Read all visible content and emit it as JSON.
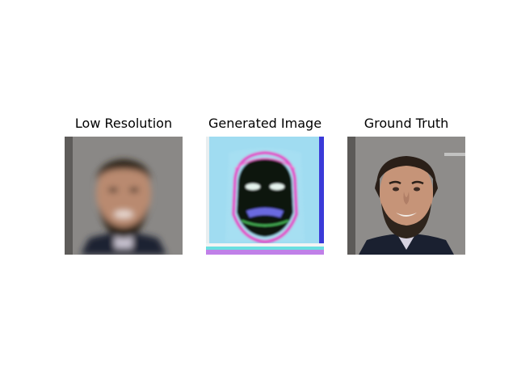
{
  "panels": [
    {
      "title": "Low Resolution"
    },
    {
      "title": "Generated Image"
    },
    {
      "title": "Ground Truth"
    }
  ],
  "colors": {
    "background": "#ffffff",
    "backdrop_gray": "#8c8a88",
    "skin": "#b98a70",
    "hair_beard": "#2b2018",
    "suit": "#1c2232",
    "generated_bg": "#8fd6ee",
    "generated_dark": "#0d140f"
  }
}
